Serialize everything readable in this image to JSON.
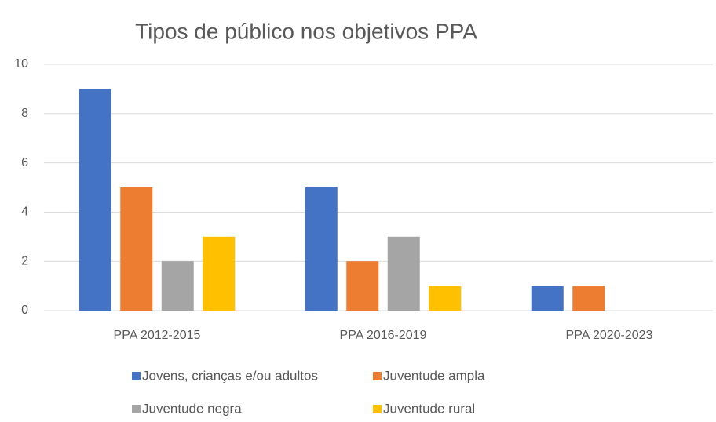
{
  "chart_data": {
    "type": "bar",
    "title": "Tipos de público nos objetivos PPA",
    "categories": [
      "PPA 2012-2015",
      "PPA 2016-2019",
      "PPA 2020-2023"
    ],
    "series": [
      {
        "name": "Jovens, crianças e/ou adultos",
        "color": "#4472c4",
        "values": [
          9,
          5,
          1
        ]
      },
      {
        "name": "Juventude ampla",
        "color": "#ed7d31",
        "values": [
          5,
          2,
          1
        ]
      },
      {
        "name": "Juventude negra",
        "color": "#a5a5a5",
        "values": [
          2,
          3,
          0
        ]
      },
      {
        "name": "Juventude rural",
        "color": "#ffc000",
        "values": [
          3,
          1,
          0
        ]
      }
    ],
    "ylim": [
      0,
      10
    ],
    "yticks": [
      0,
      2,
      4,
      6,
      8,
      10
    ],
    "grid": true,
    "legend": "bottom"
  }
}
